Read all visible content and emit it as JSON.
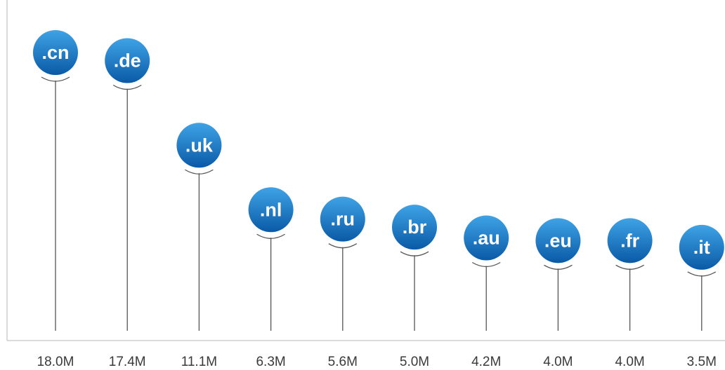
{
  "chart_data": {
    "type": "bar",
    "style": "lollipop",
    "title": "",
    "xlabel": "",
    "ylabel": "",
    "categories": [
      ".cn",
      ".de",
      ".uk",
      ".nl",
      ".ru",
      ".br",
      ".au",
      ".eu",
      ".fr",
      ".it"
    ],
    "values": [
      18.0,
      17.4,
      11.1,
      6.3,
      5.6,
      5.0,
      4.2,
      4.0,
      4.0,
      3.5
    ],
    "value_labels": [
      "18.0M",
      "17.4M",
      "11.1M",
      "6.3M",
      "5.6M",
      "5.0M",
      "4.2M",
      "4.0M",
      "4.0M",
      "3.5M"
    ],
    "unit": "M",
    "ylim": [
      0,
      18.0
    ],
    "grid": false,
    "legend": "none",
    "colors": {
      "bubble_light": "#3fa3e6",
      "bubble_dark": "#0a5aa6",
      "stem": "#555555",
      "axis": "#cfcfcf",
      "label_text": "#3a3a3a"
    }
  }
}
